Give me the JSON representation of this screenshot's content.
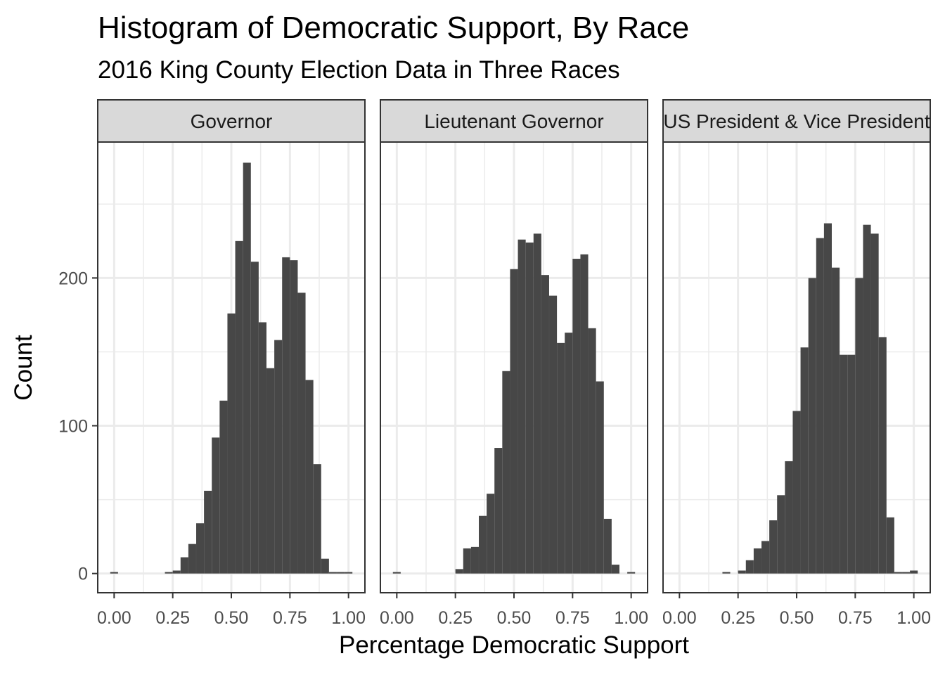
{
  "chart_data": {
    "type": "bar",
    "title": "Histogram of Democratic Support, By Race",
    "subtitle": "2016 King County Election Data in Three Races",
    "xlabel": "Percentage Democratic Support",
    "ylabel": "Count",
    "xlim": [
      -0.07,
      1.07
    ],
    "ylim": [
      -13,
      292
    ],
    "bin_width": 0.0333,
    "x_ticks": [
      0,
      0.25,
      0.5,
      0.75,
      1.0
    ],
    "x_tick_labels": [
      "0.00",
      "0.25",
      "0.50",
      "0.75",
      "1.00"
    ],
    "y_ticks": [
      0,
      100,
      200
    ],
    "y_tick_labels": [
      "0",
      "100",
      "200"
    ],
    "grid": true,
    "facets": [
      {
        "label": "Governor",
        "bin_centers": [
          0.0,
          0.2333,
          0.2667,
          0.3,
          0.3333,
          0.3667,
          0.4,
          0.4333,
          0.4667,
          0.5,
          0.5333,
          0.5667,
          0.6,
          0.6333,
          0.6667,
          0.7,
          0.7333,
          0.7667,
          0.8,
          0.8333,
          0.8667,
          0.9,
          0.9333,
          0.9667,
          1.0
        ],
        "values": [
          1,
          1,
          2,
          11,
          20,
          34,
          56,
          92,
          117,
          176,
          225,
          278,
          211,
          170,
          139,
          158,
          214,
          212,
          190,
          131,
          74,
          10,
          1,
          1,
          1
        ]
      },
      {
        "label": "Lieutenant Governor",
        "bin_centers": [
          0.0,
          0.2667,
          0.3,
          0.3333,
          0.3667,
          0.4,
          0.4333,
          0.4667,
          0.5,
          0.5333,
          0.5667,
          0.6,
          0.6333,
          0.6667,
          0.7,
          0.7333,
          0.7667,
          0.8,
          0.8333,
          0.8667,
          0.9,
          0.9333,
          1.0
        ],
        "values": [
          1,
          3,
          17,
          18,
          39,
          54,
          85,
          137,
          206,
          226,
          224,
          230,
          202,
          188,
          156,
          163,
          213,
          216,
          166,
          130,
          37,
          6,
          1
        ]
      },
      {
        "label": "US President & Vice President",
        "bin_centers": [
          0.2,
          0.2667,
          0.3,
          0.3333,
          0.3667,
          0.4,
          0.4333,
          0.4667,
          0.5,
          0.5333,
          0.5667,
          0.6,
          0.6333,
          0.6667,
          0.7,
          0.7333,
          0.7667,
          0.8,
          0.8333,
          0.8667,
          0.9,
          0.9333,
          0.9667,
          1.0
        ],
        "values": [
          1,
          2,
          9,
          17,
          22,
          36,
          53,
          76,
          110,
          153,
          200,
          227,
          237,
          207,
          148,
          148,
          200,
          236,
          230,
          160,
          38,
          1,
          1,
          2
        ]
      }
    ]
  }
}
